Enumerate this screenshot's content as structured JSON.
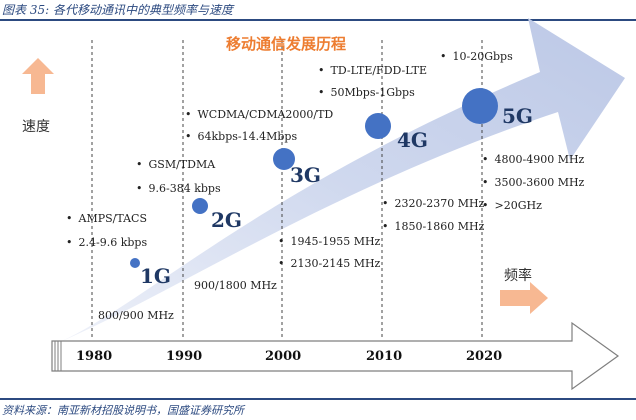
{
  "figure": {
    "title": "图表 35: 各代移动通讯中的典型频率与速度",
    "source": "资料来源：南亚新材招股说明书，国盛证券研究所"
  },
  "diagram": {
    "title": "移动通信发展历程",
    "speed_axis_label": "速度",
    "frequency_axis_label": "频率",
    "years": [
      "1980",
      "1990",
      "2000",
      "2010",
      "2020"
    ],
    "generations": [
      {
        "name": "1G",
        "standards": [
          "AMPS/TACS"
        ],
        "speed": "2.4-9.6 kbps",
        "frequencies": [
          "800/900 MHz"
        ]
      },
      {
        "name": "2G",
        "standards": [
          "GSM/TDMA"
        ],
        "speed": "9.6-384 kbps",
        "frequencies": [
          "900/1800 MHz"
        ]
      },
      {
        "name": "3G",
        "standards": [
          "WCDMA/CDMA2000/TD"
        ],
        "speed": "64kbps-14.4Mbps",
        "frequencies": [
          "1945-1955 MHz",
          "2130-2145 MHz"
        ]
      },
      {
        "name": "4G",
        "standards": [
          "TD-LTE/FDD-LTE"
        ],
        "speed": "50Mbps-1Gbps",
        "frequencies": [
          "2320-2370 MHz",
          "1850-1860 MHz"
        ]
      },
      {
        "name": "5G",
        "standards": [],
        "speed": "10-20Gbps",
        "frequencies": [
          "4800-4900 MHz",
          "3500-3600 MHz",
          ">20GHz"
        ]
      }
    ]
  },
  "colors": {
    "band": "#c9d3ea",
    "dot": "#4472c4",
    "orange_arrow": "#f7b892",
    "timeline_arrow_fill": "#ffffff",
    "timeline_arrow_stroke": "#7f7f7f",
    "dashed_line": "#444444"
  },
  "icons": {
    "speed_arrow": "orange-up-arrow-icon",
    "frequency_arrow": "orange-right-arrow-icon",
    "bullet": "bullet-dot-icon"
  }
}
